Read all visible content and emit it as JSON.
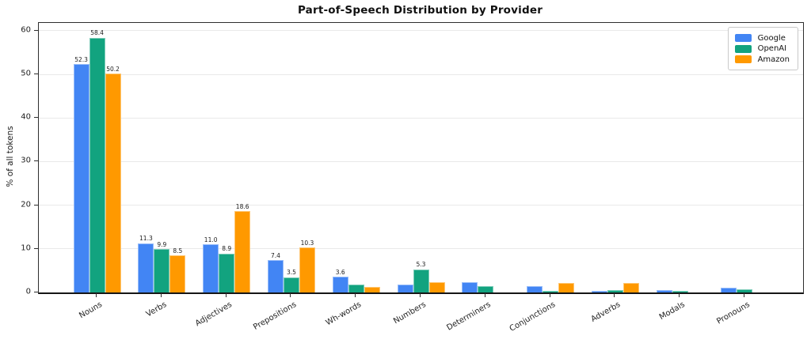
{
  "chart_data": {
    "type": "bar",
    "title": "Part-of-Speech Distribution by Provider",
    "ylabel": "% of all tokens",
    "xlabel": "",
    "categories": [
      "Nouns",
      "Verbs",
      "Adjectives",
      "Prepositions",
      "Wh-words",
      "Numbers",
      "Determiners",
      "Conjunctions",
      "Adverbs",
      "Modals",
      "Pronouns"
    ],
    "series": [
      {
        "name": "Google",
        "color": "#4285F4",
        "values": [
          52.3,
          11.3,
          11.0,
          7.4,
          3.6,
          1.9,
          2.4,
          1.5,
          0.4,
          0.5,
          1.0
        ]
      },
      {
        "name": "OpenAI",
        "color": "#12A37F",
        "values": [
          58.4,
          9.9,
          8.9,
          3.5,
          1.8,
          5.3,
          1.5,
          0.3,
          0.6,
          0.4,
          0.8
        ]
      },
      {
        "name": "Amazon",
        "color": "#FF9900",
        "values": [
          50.2,
          8.5,
          18.6,
          10.3,
          1.2,
          2.3,
          0.0,
          2.2,
          2.1,
          0.0,
          0.0
        ]
      }
    ],
    "ylim": [
      0,
      61.8
    ],
    "yticks": [
      0,
      10,
      20,
      30,
      40,
      50,
      60
    ],
    "grid": "horizontal",
    "legend_position": "top-right-inside",
    "value_label_threshold": 3.5,
    "xtick_rotation_deg": 30
  }
}
